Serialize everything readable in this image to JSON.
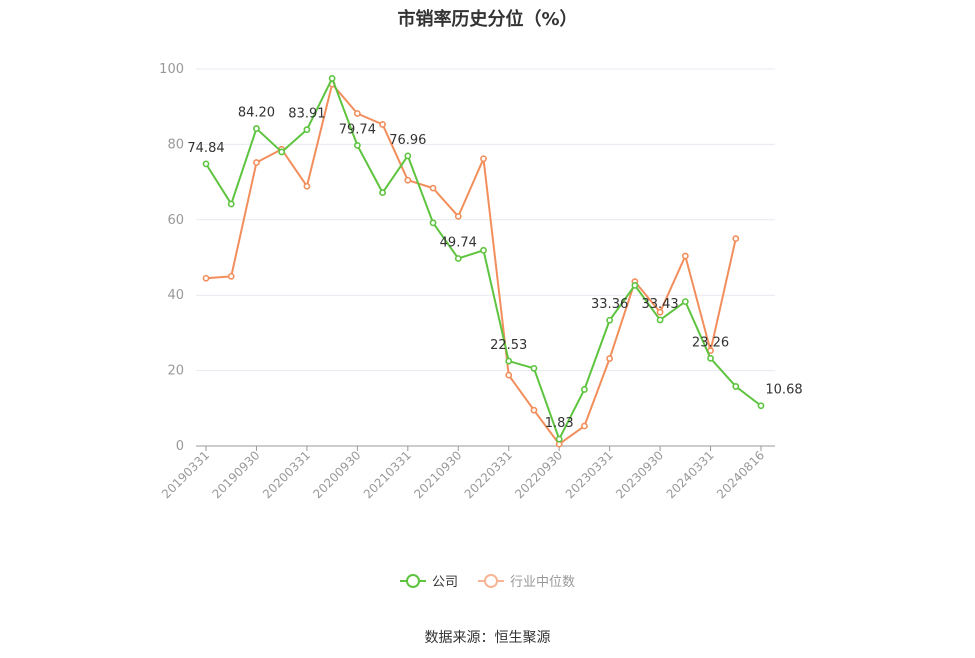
{
  "chart_data": {
    "type": "line",
    "title": "市销率历史分位（%）",
    "xlabel": "",
    "ylabel": "",
    "ylim": [
      0,
      100
    ],
    "yticks": [
      0,
      20,
      40,
      60,
      80,
      100
    ],
    "grid": true,
    "legend_position": "bottom",
    "x": [
      "20190331",
      "20190630",
      "20190930",
      "20191231",
      "20200331",
      "20200630",
      "20200930",
      "20201231",
      "20210331",
      "20210630",
      "20210930",
      "20211231",
      "20220331",
      "20220630",
      "20220930",
      "20221231",
      "20230331",
      "20230630",
      "20230930",
      "20231231",
      "20240331",
      "20240630",
      "20240816"
    ],
    "x_tick_labels": [
      "20190331",
      "20190930",
      "20200331",
      "20200930",
      "20210331",
      "20210930",
      "20220331",
      "20220930",
      "20230331",
      "20230930",
      "20240331",
      "20240816"
    ],
    "series": [
      {
        "name": "公司",
        "color": "#5ec43f",
        "values": [
          74.84,
          64.2,
          84.2,
          78.0,
          83.91,
          97.5,
          79.74,
          67.2,
          76.96,
          59.2,
          49.74,
          51.9,
          22.53,
          20.6,
          1.83,
          15.0,
          33.36,
          42.6,
          33.43,
          38.3,
          23.26,
          15.8,
          10.68
        ],
        "data_labels": {
          "0": "74.84",
          "2": "84.20",
          "4": "83.91",
          "6": "79.74",
          "8": "76.96",
          "10": "49.74",
          "12": "22.53",
          "14": "1.83",
          "16": "33.36",
          "18": "33.43",
          "20": "23.26",
          "22": "10.68"
        }
      },
      {
        "name": "行业中位数",
        "color": "#f28e5c",
        "values": [
          44.5,
          45.0,
          75.2,
          78.7,
          68.9,
          96.0,
          88.2,
          85.3,
          70.5,
          68.4,
          60.9,
          76.2,
          18.8,
          9.5,
          0.5,
          5.3,
          23.2,
          43.6,
          35.5,
          50.4,
          25.3,
          55.0,
          null
        ]
      }
    ]
  },
  "source_text": "数据来源：恒生聚源"
}
